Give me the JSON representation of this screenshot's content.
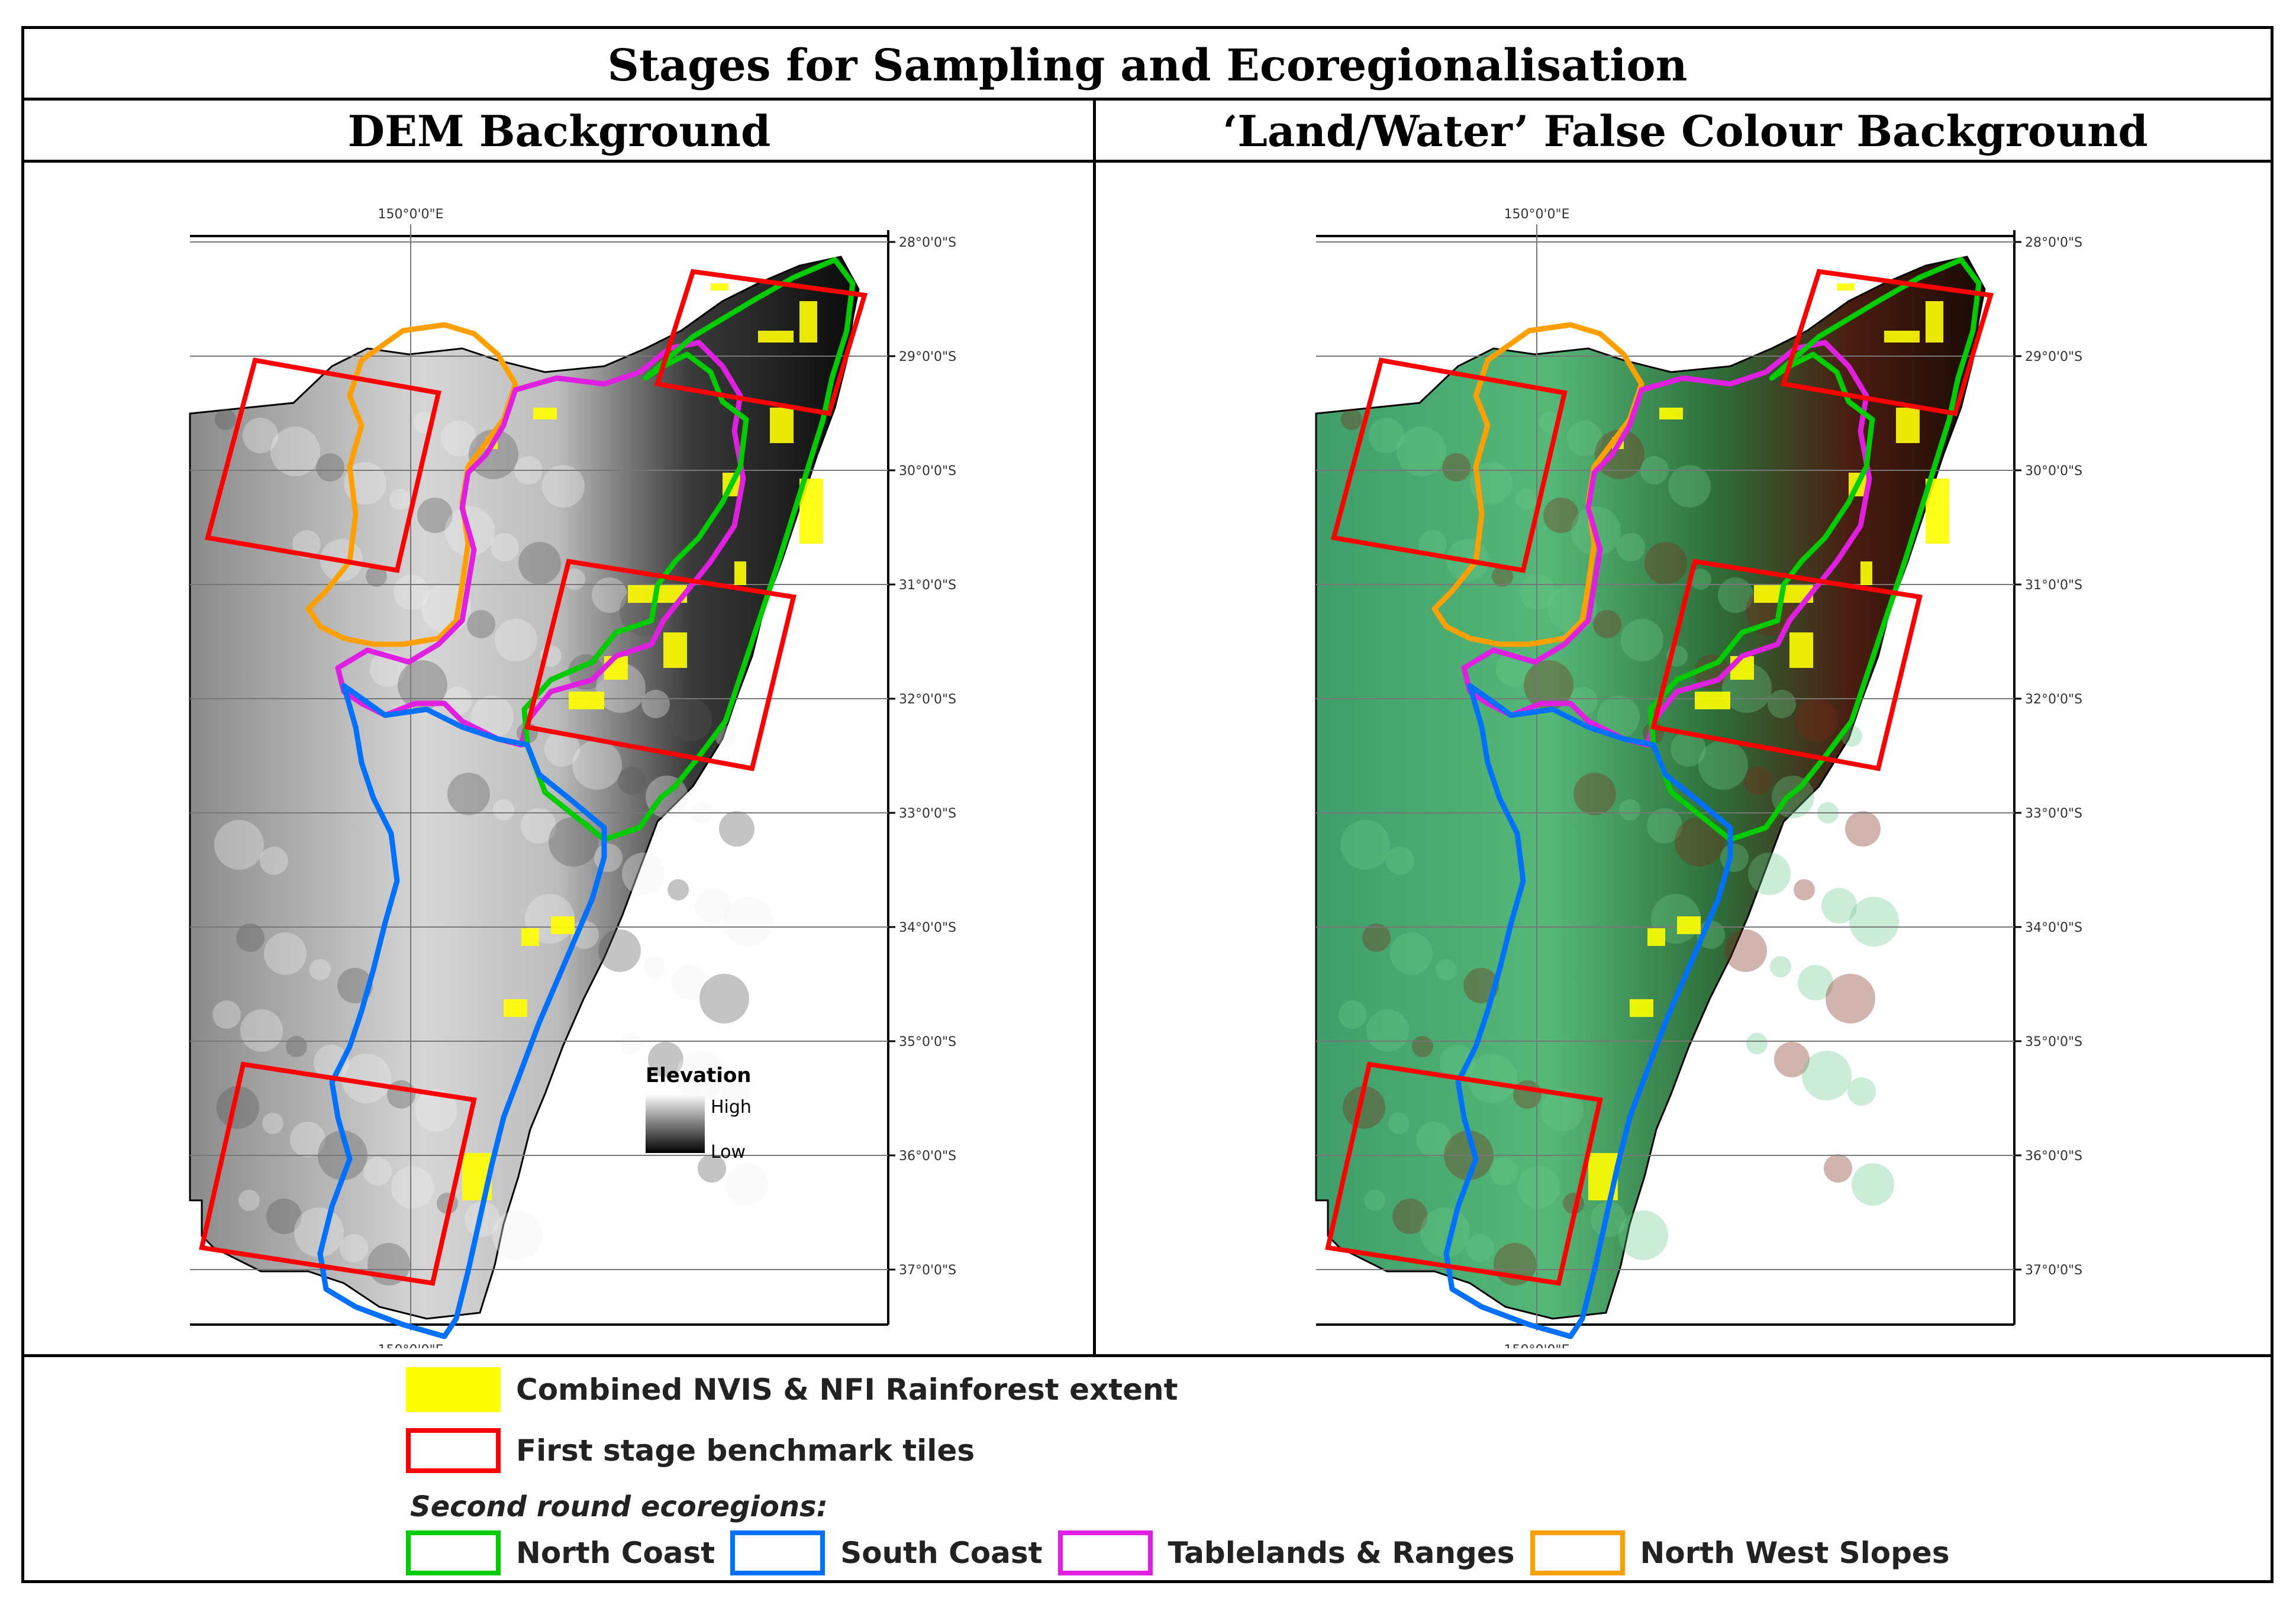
{
  "title": "Stages for Sampling and Ecoregionalisation",
  "panels": [
    {
      "id": "dem",
      "heading": "DEM Background",
      "background": "dem"
    },
    {
      "id": "landwater",
      "heading": "‘Land/Water’ False Colour Background",
      "background": "falsecolour"
    }
  ],
  "map": {
    "lon_label": "150°0'0\"E",
    "lat_labels": [
      "28°0'0\"S",
      "29°0'0\"S",
      "30°0'0\"S",
      "31°0'0\"S",
      "32°0'0\"S",
      "33°0'0\"S",
      "34°0'0\"S",
      "35°0'0\"S",
      "36°0'0\"S",
      "37°0'0\"S"
    ],
    "elevation_legend": {
      "title": "Elevation",
      "high": "High",
      "low": "Low"
    }
  },
  "legend": {
    "rainforest": {
      "label": "Combined NVIS & NFI Rainforest extent",
      "color": "#ffff00"
    },
    "tiles": {
      "label": "First stage benchmark tiles",
      "color": "#ff0000"
    },
    "subheading": "Second round ecoregions:",
    "ecoregions": [
      {
        "label": "North Coast",
        "color": "#00cc00"
      },
      {
        "label": "South Coast",
        "color": "#0070ff"
      },
      {
        "label": "Tablelands & Ranges",
        "color": "#e020e0"
      },
      {
        "label": "North West Slopes",
        "color": "#ffa000"
      }
    ]
  }
}
